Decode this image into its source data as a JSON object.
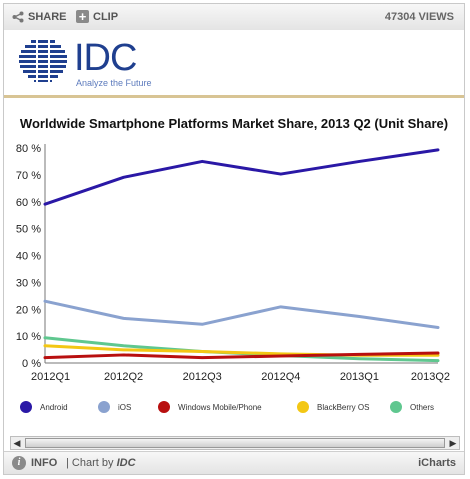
{
  "toolbar": {
    "share_label": "SHARE",
    "clip_label": "CLIP",
    "views": "47304 VIEWS"
  },
  "logo": {
    "name": "IDC",
    "tagline": "Analyze the Future"
  },
  "footer": {
    "info_label": "INFO",
    "chart_by_prefix": "| Chart by",
    "chart_by_brand": "IDC",
    "brand": "iCharts"
  },
  "colors": {
    "accent_rule": "#d8c494",
    "logo_blue": "#1f3f8f"
  },
  "chart_data": {
    "type": "line",
    "title": "Worldwide Smartphone Platforms Market Share, 2013 Q2 (Unit Share)",
    "xlabel": "",
    "ylabel": "",
    "categories": [
      "2012Q1",
      "2012Q2",
      "2012Q3",
      "2012Q4",
      "2013Q1",
      "2013Q2"
    ],
    "ylim": [
      0,
      80
    ],
    "yticks": [
      "0 %",
      "10 %",
      "20 %",
      "30 %",
      "40 %",
      "50 %",
      "60 %",
      "70 %",
      "80 %"
    ],
    "grid": false,
    "legend_position": "bottom",
    "series": [
      {
        "name": "Android",
        "color": "#2a18a6",
        "values": [
          59.1,
          69.1,
          75.0,
          70.3,
          75.0,
          79.3
        ]
      },
      {
        "name": "iOS",
        "color": "#8aa2cf",
        "values": [
          23.0,
          16.6,
          14.4,
          20.9,
          17.3,
          13.2
        ]
      },
      {
        "name": "Windows Mobile/Phone",
        "color": "#b80f0f",
        "values": [
          2.0,
          3.0,
          2.0,
          2.6,
          3.2,
          3.7
        ]
      },
      {
        "name": "BlackBerry OS",
        "color": "#f3c714",
        "values": [
          6.4,
          4.9,
          4.3,
          3.4,
          2.9,
          2.9
        ]
      },
      {
        "name": "Others",
        "color": "#5fc78f",
        "values": [
          9.4,
          6.4,
          4.3,
          2.8,
          1.6,
          0.9
        ]
      }
    ]
  }
}
